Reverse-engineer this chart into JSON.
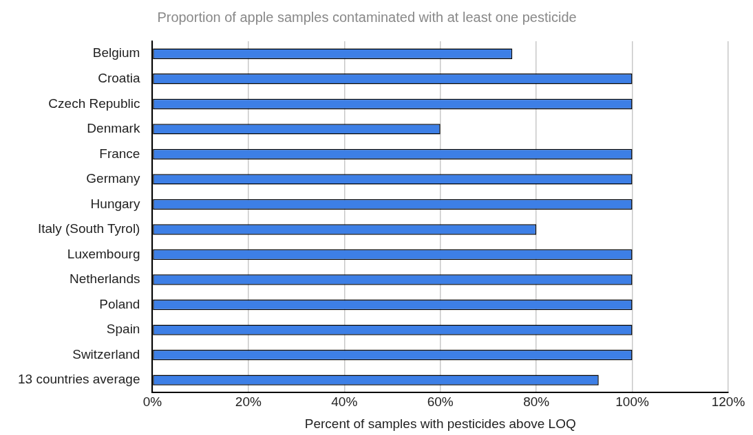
{
  "chart_data": {
    "type": "bar",
    "orientation": "horizontal",
    "title": "Proportion of apple samples contaminated with at least one pesticide",
    "xlabel": "Percent of samples with pesticides above LOQ",
    "categories": [
      "Belgium",
      "Croatia",
      "Czech Republic",
      "Denmark",
      "France",
      "Germany",
      "Hungary",
      "Italy (South Tyrol)",
      "Luxembourg",
      "Netherlands",
      "Poland",
      "Spain",
      "Switzerland",
      "13 countries average"
    ],
    "values": [
      75,
      100,
      100,
      60,
      100,
      100,
      100,
      80,
      100,
      100,
      100,
      100,
      100,
      93
    ],
    "color": "#3d7fe6",
    "xlim": [
      0,
      120
    ],
    "xticks": [
      {
        "value": 0,
        "label": "0%"
      },
      {
        "value": 20,
        "label": "20%"
      },
      {
        "value": 40,
        "label": "40%"
      },
      {
        "value": 60,
        "label": "60%"
      },
      {
        "value": 80,
        "label": "80%"
      },
      {
        "value": 100,
        "label": "100%"
      },
      {
        "value": 120,
        "label": "120%"
      }
    ],
    "grid": "x"
  }
}
